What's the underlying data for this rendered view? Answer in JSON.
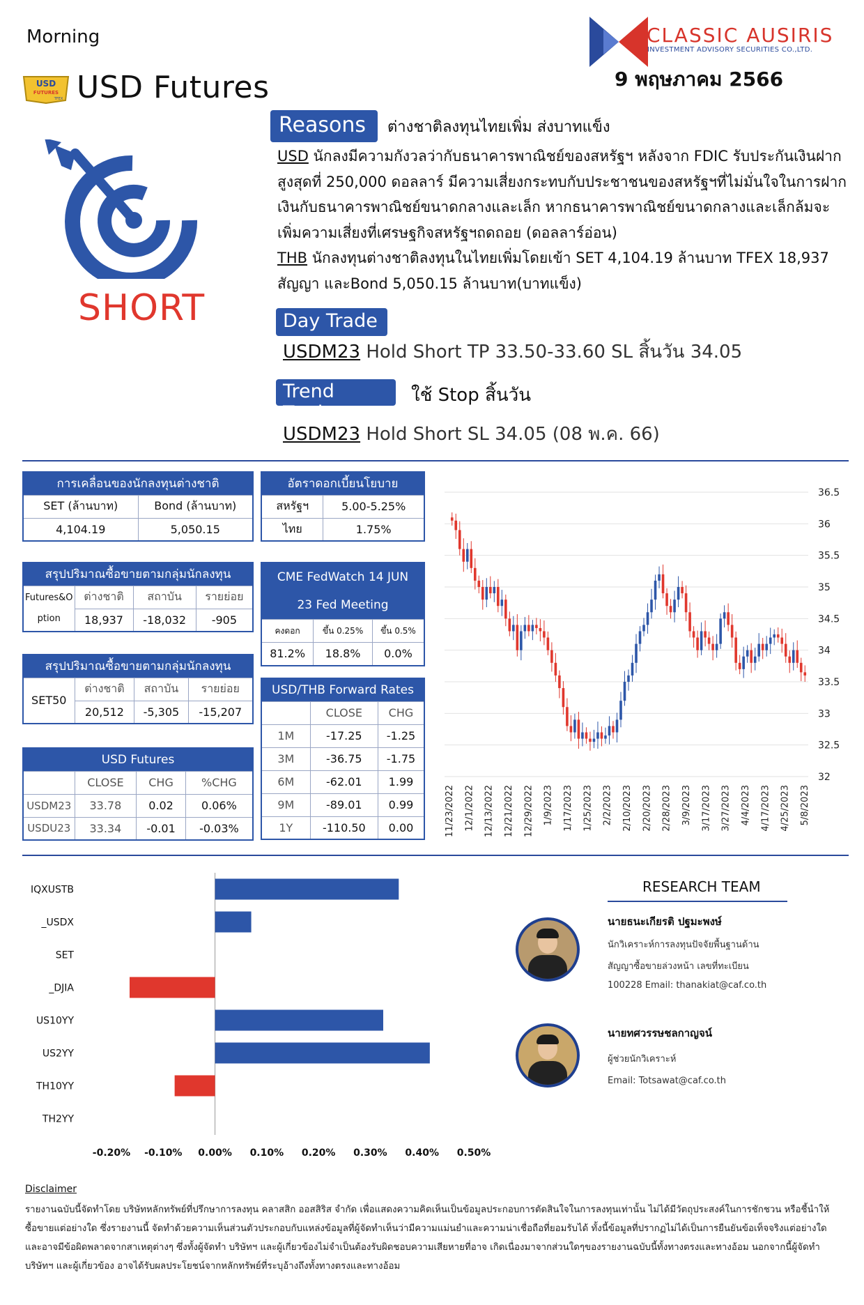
{
  "header": {
    "morning": "Morning",
    "title": "USD Futures",
    "brand_name": "CLASSIC AUSIRIS",
    "brand_sub": "INVESTMENT ADVISORY SECURITIES CO.,LTD.",
    "date": "9 พฤษภาคม 2566",
    "badge_top": "USD",
    "badge_bottom": "FUTURES",
    "badge_mini": "TFEX"
  },
  "signal": {
    "position": "SHORT",
    "colors": {
      "accent": "#2d56a8",
      "short": "#e0372d"
    }
  },
  "reasons": {
    "label": "Reasons",
    "headline": "ต่างชาติลงทุนไทยเพิ่ม ส่งบาทแข็ง",
    "usd_tag": "USD",
    "usd_text": " นักลงมีความกังวลว่ากับธนาคารพาณิชย์ของสหรัฐฯ หลังจาก FDIC รับประกันเงินฝากสูงสุดที่ 250,000 ดอลลาร์ มีความเสี่ยงกระทบกับประชาชนของสหรัฐฯที่ไม่มั่นใจในการฝากเงินกับธนาคารพาณิชย์ขนาดกลางและเล็ก หากธนาคารพาณิชย์ขนาดกลางและเล็กล้มจะเพิ่มความเสี่ยงที่เศรษฐกิจสหรัฐฯถดถอย (ดอลลาร์อ่อน)",
    "thb_tag": "THB",
    "thb_text": " นักลงทุนต่างชาติลงทุนในไทยเพิ่มโดยเข้า SET 4,104.19 ล้านบาท TFEX 18,937 สัญญา และBond 5,050.15 ล้านบาท(บาทแข็ง)"
  },
  "day_trade": {
    "label": "Day Trade",
    "symbol": "USDM23",
    "text": " Hold Short  TP 33.50-33.60 SL สิ้นวัน 34.05"
  },
  "trend_trade": {
    "label": "Trend Trade",
    "headline": "ใช้ Stop สิ้นวัน",
    "symbol": "USDM23",
    "text": "  Hold Short  SL 34.05 (08 พ.ค. 66)"
  },
  "foreign_flow": {
    "title": "การเคลื่อนของนักลงทุนต่างชาติ",
    "headers": [
      "SET (ล้านบาท)",
      "Bond (ล้านบาท)"
    ],
    "values": [
      "4,104.19",
      "5,050.15"
    ]
  },
  "policy_rate": {
    "title": "อัตราดอกเบี้ยนโยบาย",
    "rows": [
      [
        "สหรัฐฯ",
        "5.00-5.25%"
      ],
      [
        "ไทย",
        "1.75%"
      ]
    ]
  },
  "futures_options_flow": {
    "title": "สรุปปริมาณซื้อขายตามกลุ่มนักลงทุน",
    "row_label_1": "Futures&O",
    "row_label_2": "ption",
    "headers": [
      "ต่างชาติ",
      "สถาบัน",
      "รายย่อย"
    ],
    "values": [
      "18,937",
      "-18,032",
      "-905"
    ]
  },
  "fedwatch": {
    "title_1": "CME FedWatch 14 JUN",
    "title_2": "23 Fed Meeting",
    "headers": [
      "คงดอก",
      "ขึ้น 0.25%",
      "ขึ้น 0.5%"
    ],
    "values": [
      "81.2%",
      "18.8%",
      "0.0%"
    ]
  },
  "set50_flow": {
    "title": "สรุปปริมาณซื้อขายตามกลุ่มนักลงทุน",
    "row_label": "SET50",
    "headers": [
      "ต่างชาติ",
      "สถาบัน",
      "รายย่อย"
    ],
    "values": [
      "20,512",
      "-5,305",
      "-15,207"
    ]
  },
  "forward_rates": {
    "title": "USD/THB Forward Rates",
    "headers": [
      "CLOSE",
      "CHG"
    ],
    "rows": [
      [
        "1M",
        "-17.25",
        "-1.25"
      ],
      [
        "3M",
        "-36.75",
        "-1.75"
      ],
      [
        "6M",
        "-62.01",
        "1.99"
      ],
      [
        "9M",
        "-89.01",
        "0.99"
      ],
      [
        "1Y",
        "-110.50",
        "0.00"
      ]
    ]
  },
  "usd_futures": {
    "title": "USD Futures",
    "headers": [
      "CLOSE",
      "CHG",
      "%CHG"
    ],
    "rows": [
      [
        "USDM23",
        "33.78",
        "0.02",
        "0.06%"
      ],
      [
        "USDU23",
        "33.34",
        "-0.01",
        "-0.03%"
      ]
    ]
  },
  "chart_data": [
    {
      "type": "candlestick",
      "x_labels": [
        "11/23/2022",
        "12/1/2022",
        "12/13/2022",
        "12/21/2022",
        "12/29/2022",
        "1/9/2023",
        "1/17/2023",
        "1/25/2023",
        "2/2/2023",
        "2/10/2023",
        "2/20/2023",
        "2/28/2023",
        "3/9/2023",
        "3/17/2023",
        "3/27/2023",
        "4/4/2023",
        "4/17/2023",
        "4/25/2023",
        "5/8/2023"
      ],
      "y_ticks": [
        "32",
        "32.5",
        "33",
        "33.5",
        "34",
        "34.5",
        "35",
        "35.5",
        "36",
        "36.5"
      ],
      "ylim": [
        32,
        36.5
      ],
      "y_axis_position": "right",
      "grid": "horizontal",
      "colors": {
        "up": "#2d56a8",
        "down": "#e0372d"
      },
      "closes": [
        36.05,
        35.9,
        35.6,
        35.4,
        35.6,
        35.3,
        35.1,
        35.0,
        34.8,
        35.0,
        34.9,
        35.0,
        34.7,
        34.8,
        34.5,
        34.3,
        34.4,
        34.0,
        34.3,
        34.4,
        34.3,
        34.4,
        34.35,
        34.3,
        34.2,
        34.0,
        33.8,
        33.6,
        33.4,
        33.1,
        32.8,
        32.7,
        32.9,
        32.6,
        32.7,
        32.6,
        32.55,
        32.6,
        32.7,
        32.6,
        32.65,
        32.8,
        32.7,
        32.9,
        33.2,
        33.5,
        33.6,
        33.8,
        34.1,
        34.3,
        34.4,
        34.6,
        34.8,
        35.1,
        35.2,
        34.9,
        34.7,
        34.6,
        34.8,
        35.0,
        34.9,
        34.6,
        34.3,
        34.2,
        34.0,
        34.3,
        34.2,
        34.1,
        34.0,
        34.1,
        34.5,
        34.6,
        34.4,
        34.2,
        33.8,
        33.7,
        33.9,
        34.0,
        33.8,
        33.9,
        34.1,
        34.0,
        34.1,
        34.2,
        34.25,
        34.2,
        34.1,
        33.9,
        33.8,
        34.0,
        33.8,
        33.65,
        33.6
      ]
    },
    {
      "type": "bar",
      "orientation": "horizontal",
      "categories": [
        "IQXUSTB",
        "_USDX",
        "SET",
        "_DJIA",
        "US10YY",
        "US2YY",
        "TH10YY",
        "TH2YY"
      ],
      "values": [
        0.355,
        0.07,
        0.0,
        -0.165,
        0.325,
        0.415,
        -0.078,
        0.0
      ],
      "x_ticks": [
        "-0.20%",
        "-0.10%",
        "0.00%",
        "0.10%",
        "0.20%",
        "0.30%",
        "0.40%",
        "0.50%"
      ],
      "xlim": [
        -0.2,
        0.5
      ],
      "colors": {
        "positive": "#2d56a8",
        "negative": "#e0372d"
      }
    }
  ],
  "research_team": {
    "title": "RESEARCH TEAM",
    "members": [
      {
        "name": "นายธนะเกียรติ ปฐมะพงษ์",
        "line1": "นักวิเคราะห์การลงทุนปัจจัยพื้นฐานด้าน",
        "line2": "สัญญาซื้อขายล่วงหน้า เลขที่ทะเบียน",
        "line3": "100228 Email: thanakiat@caf.co.th"
      },
      {
        "name": "นายทศวรรษชลกาญจน์",
        "line1": "ผู้ช่วยนักวิเคราะห์",
        "line2": "Email: Totsawat@caf.co.th"
      }
    ]
  },
  "disclaimer": {
    "title": "Disclaimer",
    "text": "รายงานฉบับนี้จัดทำโดย บริษัทหลักทรัพย์ที่ปรึกษาการลงทุน คลาสสิก ออสสิริส จำกัด เพื่อแสดงความคิดเห็นเป็นข้อมูลประกอบการตัดสินใจในการลงทุนเท่านั้น ไม่ได้มีวัตถุประสงค์ในการชักชวน หรือชี้นำให้ซื้อขายแต่อย่างใด ซึ่งรายงานนี้ จัดทำด้วยความเห็นส่วนตัวประกอบกับแหล่งข้อมูลที่ผู้จัดทำเห็นว่ามีความแม่นยำและความน่าเชื่อถือที่ยอมรับได้ ทั้งนี้ข้อมูลที่ปรากฏไม่ได้เป็นการยืนยันข้อเท็จจริงแต่อย่างใดและอาจมีข้อผิดพลาดจากสาเหตุต่างๆ ซึ่งทั้งผู้จัดทำ บริษัทฯ และผู้เกี่ยวข้องไม่จำเป็นต้องรับผิดชอบความเสียหายที่อาจ เกิดเนื่องมาจากส่วนใดๆของรายงานฉบับนี้ทั้งทางตรงและทางอ้อม นอกจากนี้ผู้จัดทำ บริษัทฯ และผู้เกี่ยวข้อง อาจได้รับผลประโยชน์จากหลักทรัพย์ที่ระบุอ้างถึงทั้งทางตรงและทางอ้อม"
  }
}
